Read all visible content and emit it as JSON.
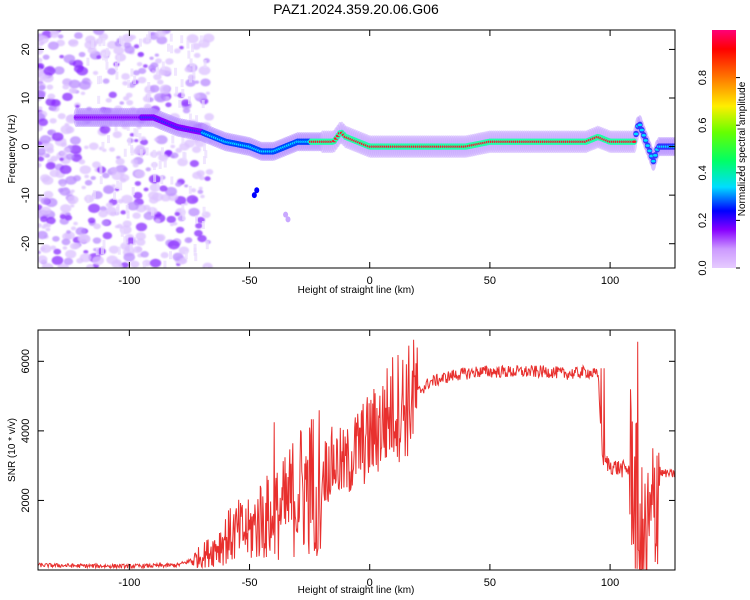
{
  "figure": {
    "title": "PAZ1.2024.359.20.06.G06"
  },
  "chart_data": [
    {
      "type": "heatmap",
      "xlabel": "Height of straight line (km)",
      "ylabel": "Frequency (Hz)",
      "xlim": [
        -138,
        127
      ],
      "ylim": [
        -25,
        24
      ],
      "xticks": [
        -100,
        -50,
        0,
        50,
        100
      ],
      "yticks": [
        -20,
        -10,
        0,
        10,
        20
      ],
      "colorbar": {
        "label": "Normalized spectral amplitude",
        "range": [
          0,
          1
        ],
        "ticks": [
          0.0,
          0.2,
          0.4,
          0.6,
          0.8
        ],
        "tick_labels": [
          "0.0",
          "0.2",
          "0.4",
          "0.6",
          "0.8"
        ],
        "colormap": [
          "#e6ccff",
          "#8800ff",
          "#0000ff",
          "#00ddff",
          "#00ff66",
          "#66ff00",
          "#ffee00",
          "#ff7700",
          "#ff0000",
          "#ff0077"
        ]
      },
      "ridge": {
        "name": "",
        "x": [
          -120,
          -110,
          -100,
          -90,
          -80,
          -70,
          -60,
          -50,
          -45,
          -40,
          -35,
          -30,
          -25,
          -20,
          -15,
          -12,
          -10,
          -5,
          0,
          10,
          20,
          30,
          40,
          50,
          60,
          70,
          80,
          90,
          95,
          100,
          105,
          110,
          112,
          115,
          118,
          120,
          127
        ],
        "y": [
          6,
          6,
          6,
          6,
          4,
          3,
          1,
          0,
          -1,
          -1,
          0,
          1,
          1,
          1,
          1,
          3,
          2,
          1,
          0,
          0,
          0,
          0,
          0,
          1,
          1,
          1,
          1,
          1,
          2,
          1,
          1,
          1,
          5,
          1,
          -3,
          0,
          0
        ]
      }
    },
    {
      "type": "line",
      "xlabel": "Height of straight line (km)",
      "ylabel": "SNR (10 * v/v)",
      "xlim": [
        -138,
        127
      ],
      "ylim": [
        0,
        6900
      ],
      "xticks": [
        -100,
        -50,
        0,
        50,
        100
      ],
      "yticks": [
        2000,
        4000,
        6000
      ],
      "series": [
        {
          "name": "",
          "color": "#e8302e",
          "x": [
            -138,
            -130,
            -120,
            -110,
            -100,
            -90,
            -80,
            -75,
            -70,
            -65,
            -60,
            -55,
            -50,
            -45,
            -40,
            -35,
            -30,
            -25,
            -20,
            -15,
            -10,
            -5,
            0,
            5,
            10,
            15,
            20,
            25,
            30,
            35,
            40,
            45,
            50,
            55,
            60,
            65,
            70,
            75,
            80,
            85,
            90,
            95,
            97,
            100,
            105,
            110,
            112,
            115,
            118,
            120,
            127
          ],
          "y": [
            140,
            130,
            120,
            115,
            110,
            120,
            140,
            250,
            400,
            600,
            900,
            1100,
            1100,
            1500,
            1500,
            1800,
            2300,
            2400,
            2800,
            3100,
            3000,
            3500,
            3800,
            4200,
            4700,
            4800,
            5100,
            5400,
            5500,
            5600,
            5650,
            5700,
            5700,
            5700,
            5700,
            5700,
            5700,
            5700,
            5650,
            5650,
            5700,
            5600,
            3200,
            3000,
            2900,
            2900,
            400,
            600,
            1500,
            2800,
            2750
          ]
        }
      ]
    }
  ]
}
